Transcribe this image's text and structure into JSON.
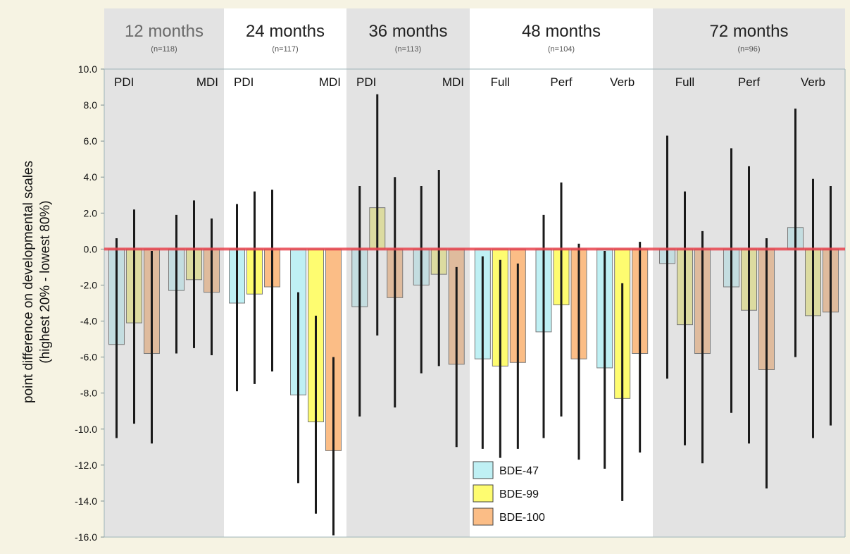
{
  "chart_data": {
    "type": "bar",
    "ylabel_line1": "point difference on developmental scales",
    "ylabel_line2": "(highest 20% - lowest 80%)",
    "ylim": [
      -16,
      10
    ],
    "y_ticks": [
      10,
      8,
      6,
      4,
      2,
      0,
      -2,
      -4,
      -6,
      -8,
      -10,
      -12,
      -14,
      -16
    ],
    "y_tick_labels": [
      "10.0",
      "8.0",
      "6.0",
      "4.0",
      "2.0",
      "0.0",
      "-2.0",
      "-4.0",
      "-6.0",
      "-8.0",
      "-10.0",
      "-12.0",
      "-14.0",
      "-16.0"
    ],
    "legend": {
      "position": "bottom-center",
      "entries": [
        "BDE-47",
        "BDE-99",
        "BDE-100"
      ]
    },
    "series_colors": [
      "#bff0f4",
      "#fefc70",
      "#fbbd86"
    ],
    "muted_colors": [
      "#c4dde0",
      "#dcdba0",
      "#dfbb9d"
    ],
    "panels": [
      {
        "title": "12 months",
        "n": "(n=118)",
        "shaded": true,
        "groups": [
          {
            "label": "PDI",
            "bars": [
              {
                "value": -5.3,
                "ci": [
                  -10.5,
                  0.6
                ]
              },
              {
                "value": -4.1,
                "ci": [
                  -9.7,
                  2.2
                ]
              },
              {
                "value": -5.8,
                "ci": [
                  -10.8,
                  -0.1
                ]
              }
            ]
          },
          {
            "label": "MDI",
            "bars": [
              {
                "value": -2.3,
                "ci": [
                  -5.8,
                  1.9
                ]
              },
              {
                "value": -1.7,
                "ci": [
                  -5.5,
                  2.7
                ]
              },
              {
                "value": -2.4,
                "ci": [
                  -5.9,
                  1.7
                ]
              }
            ]
          }
        ]
      },
      {
        "title": "24 months",
        "n": "(n=117)",
        "shaded": false,
        "groups": [
          {
            "label": "PDI",
            "bars": [
              {
                "value": -3.0,
                "ci": [
                  -7.9,
                  2.5
                ]
              },
              {
                "value": -2.5,
                "ci": [
                  -7.5,
                  3.2
                ]
              },
              {
                "value": -2.1,
                "ci": [
                  -6.8,
                  3.3
                ]
              }
            ]
          },
          {
            "label": "MDI",
            "bars": [
              {
                "value": -8.1,
                "ci": [
                  -13.0,
                  -2.4
                ]
              },
              {
                "value": -9.6,
                "ci": [
                  -14.7,
                  -3.7
                ]
              },
              {
                "value": -11.2,
                "ci": [
                  -15.9,
                  -6.0
                ]
              }
            ]
          }
        ]
      },
      {
        "title": "36 months",
        "n": "(n=113)",
        "shaded": true,
        "groups": [
          {
            "label": "PDI",
            "bars": [
              {
                "value": -3.2,
                "ci": [
                  -9.3,
                  3.5
                ]
              },
              {
                "value": 2.3,
                "ci": [
                  -4.8,
                  8.6
                ]
              },
              {
                "value": -2.7,
                "ci": [
                  -8.8,
                  4.0
                ]
              }
            ]
          },
          {
            "label": "MDI",
            "bars": [
              {
                "value": -2.0,
                "ci": [
                  -6.9,
                  3.5
                ]
              },
              {
                "value": -1.4,
                "ci": [
                  -6.5,
                  4.4
                ]
              },
              {
                "value": -6.4,
                "ci": [
                  -11.0,
                  -1.0
                ]
              }
            ]
          }
        ]
      },
      {
        "title": "48 months",
        "n": "(n=104)",
        "shaded": false,
        "groups": [
          {
            "label": "Full",
            "bars": [
              {
                "value": -6.1,
                "ci": [
                  -11.1,
                  -0.4
                ]
              },
              {
                "value": -6.5,
                "ci": [
                  -11.6,
                  -0.6
                ]
              },
              {
                "value": -6.3,
                "ci": [
                  -11.1,
                  -0.8
                ]
              }
            ]
          },
          {
            "label": "Perf",
            "bars": [
              {
                "value": -4.6,
                "ci": [
                  -10.5,
                  1.9
                ]
              },
              {
                "value": -3.1,
                "ci": [
                  -9.3,
                  3.7
                ]
              },
              {
                "value": -6.1,
                "ci": [
                  -11.7,
                  0.3
                ]
              }
            ]
          },
          {
            "label": "Verb",
            "bars": [
              {
                "value": -6.6,
                "ci": [
                  -12.2,
                  -0.1
                ]
              },
              {
                "value": -8.3,
                "ci": [
                  -14.0,
                  -1.9
                ]
              },
              {
                "value": -5.8,
                "ci": [
                  -11.3,
                  0.4
                ]
              }
            ]
          }
        ]
      },
      {
        "title": "72 months",
        "n": "(n=96)",
        "shaded": true,
        "groups": [
          {
            "label": "Full",
            "bars": [
              {
                "value": -0.8,
                "ci": [
                  -7.2,
                  6.3
                ]
              },
              {
                "value": -4.2,
                "ci": [
                  -10.9,
                  3.2
                ]
              },
              {
                "value": -5.8,
                "ci": [
                  -11.9,
                  1.0
                ]
              }
            ]
          },
          {
            "label": "Perf",
            "bars": [
              {
                "value": -2.1,
                "ci": [
                  -9.1,
                  5.6
                ]
              },
              {
                "value": -3.4,
                "ci": [
                  -10.8,
                  4.6
                ]
              },
              {
                "value": -6.7,
                "ci": [
                  -13.3,
                  0.6
                ]
              }
            ]
          },
          {
            "label": "Verb",
            "bars": [
              {
                "value": 1.2,
                "ci": [
                  -6.0,
                  7.8
                ]
              },
              {
                "value": -3.7,
                "ci": [
                  -10.5,
                  3.9
                ]
              },
              {
                "value": -3.5,
                "ci": [
                  -9.8,
                  3.5
                ]
              }
            ]
          }
        ]
      }
    ]
  }
}
